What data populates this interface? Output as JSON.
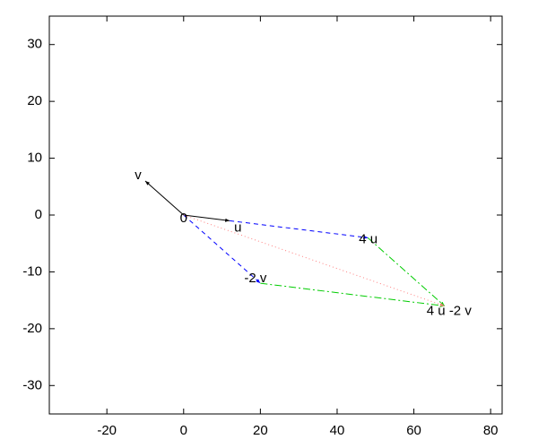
{
  "chart_data": {
    "type": "vector",
    "xlim": [
      -35,
      83
    ],
    "ylim": [
      -35,
      35
    ],
    "xticks": [
      -20,
      0,
      20,
      40,
      60,
      80
    ],
    "yticks": [
      -30,
      -20,
      -10,
      0,
      10,
      20,
      30
    ],
    "segments": [
      {
        "x": [
          0,
          12
        ],
        "y": [
          0,
          -1
        ],
        "color": "#000000",
        "dash": "solid"
      },
      {
        "x": [
          0,
          -10
        ],
        "y": [
          0,
          6
        ],
        "color": "#000000",
        "dash": "solid"
      },
      {
        "x": [
          12,
          48
        ],
        "y": [
          -1,
          -4
        ],
        "color": "#0000ff",
        "dash": "dashed"
      },
      {
        "x": [
          0,
          20
        ],
        "y": [
          0,
          -12
        ],
        "color": "#0000ff",
        "dash": "dashed"
      },
      {
        "x": [
          48,
          68
        ],
        "y": [
          -4,
          -16
        ],
        "color": "#00cc00",
        "dash": "dashdot"
      },
      {
        "x": [
          20,
          68
        ],
        "y": [
          -12,
          -16
        ],
        "color": "#00cc00",
        "dash": "dashdot"
      },
      {
        "x": [
          0,
          68
        ],
        "y": [
          0,
          -16
        ],
        "color": "#ff8080",
        "dash": "dotted"
      }
    ],
    "annotations": [
      {
        "text": "v",
        "x": -10,
        "y": 6
      },
      {
        "text": "0",
        "x": 0,
        "y": 0
      },
      {
        "text": "u",
        "x": 12,
        "y": -1
      },
      {
        "text": "4 u",
        "x": 48,
        "y": -4
      },
      {
        "text": "-2 v",
        "x": 20,
        "y": -12
      },
      {
        "text": "4 u -2 v",
        "x": 68,
        "y": -16
      }
    ]
  }
}
